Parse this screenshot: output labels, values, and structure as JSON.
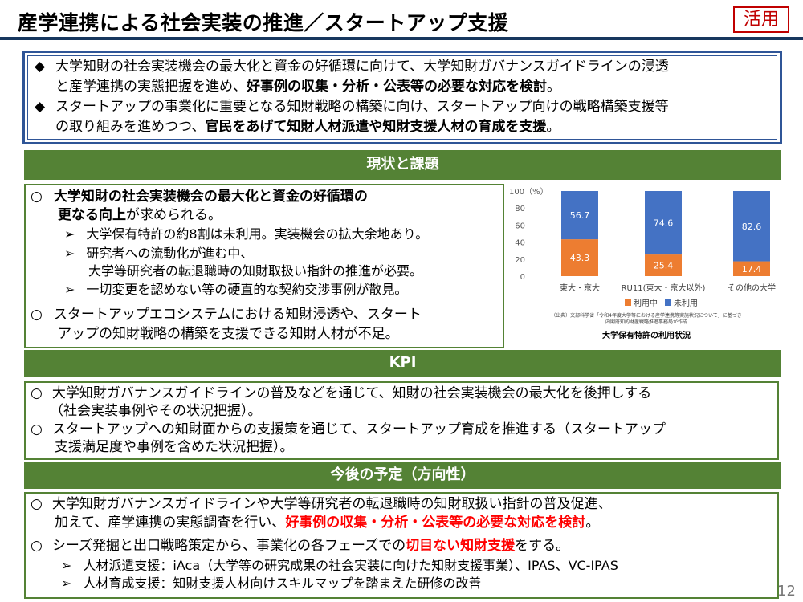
{
  "header": {
    "title": "産学連携による社会実装の推進／スタートアップ支援",
    "badge": "活用"
  },
  "summary": {
    "bullet_symbol": "◆",
    "items": [
      {
        "line1": "大学知財の社会実装機会の最大化と資金の好循環に向けて、大学知財ガバナンスガイドラインの浸透",
        "line2_pre": "と産学連携の実態把握を進め、",
        "line2_bold": "好事例の収集・分析・公表等の必要な対応を検討",
        "line2_post": "。"
      },
      {
        "line1": "スタートアップの事業化に重要となる知財戦略の構築に向け、スタートアップ向けの戦略構築支援等",
        "line2_pre": "の取り組みを進めつつ、",
        "line2_bold": "官民をあげて知財人材派遣や知財支援人材の育成を支援",
        "line2_post": "。"
      }
    ]
  },
  "current": {
    "heading": "現状と課題",
    "circle": "○",
    "arrow": "➢",
    "item1_line1": "大学知財の社会実装機会の最大化と資金の好循環の",
    "item1_line2_bold": "更なる向上",
    "item1_line2_rest": "が求められる。",
    "sub1": "大学保有特許の約8割は未利用。実装機会の拡大余地あり。",
    "sub2_line1": "研究者への流動化が進む中、",
    "sub2_line2": "大学等研究者の転退職時の知財取扱い指針の推進が必要。",
    "sub3": "一切変更を認めない等の硬直的な契約交渉事例が散見。",
    "item2_line1": "スタートアップエコシステムにおける知財浸透や、スタート",
    "item2_line2": "アップの知財戦略の構築を支援できる知財人材が不足。"
  },
  "chart_data": {
    "type": "bar",
    "stacked": true,
    "categories": [
      "東大・京大",
      "RU11(東大・京大以外)",
      "その他の大学"
    ],
    "series": [
      {
        "name": "利用中",
        "values": [
          43.3,
          25.4,
          17.4
        ],
        "color": "#ed7d31"
      },
      {
        "name": "未利用",
        "values": [
          56.7,
          74.6,
          82.6
        ],
        "color": "#4472c4"
      }
    ],
    "ylim": [
      0,
      100
    ],
    "yticks": [
      "0",
      "20",
      "40",
      "60",
      "80",
      "100（%）"
    ],
    "legend_position": "bottom",
    "source_line1": "（出典）文部科学省「令和4年度大学等における産学連携等実施状況について」に基づき",
    "source_line2": "内閣府知的財産戦略推進事務局が作成",
    "caption": "大学保有特許の利用状況"
  },
  "kpi": {
    "heading": "KPI",
    "line1": "大学知財ガバナンスガイドラインの普及などを通じて、知財の社会実装機会の最大化を後押しする",
    "line2": "（社会実装事例やその状況把握）。",
    "line3": "スタートアップへの知財面からの支援策を通じて、スタートアップ育成を推進する（スタートアップ",
    "line4": "支援満足度や事例を含めた状況把握）。"
  },
  "plan": {
    "heading": "今後の予定（方向性）",
    "line1": "大学知財ガバナンスガイドラインや大学等研究者の転退職時の知財取扱い指針の普及促進、",
    "line2_pre": "加えて、産学連携の実態調査を行い、",
    "line2_red": "好事例の収集・分析・公表等の必要な対応を検討",
    "line2_post": "。",
    "line3_pre": "シーズ発掘と出口戦略策定から、事業化の各フェーズでの",
    "line3_red": "切目ない知財支援",
    "line3_post": "をする。",
    "sub1": "人材派遣支援：iAca（大学等の研究成果の社会実装に向けた知財支援事業）、IPAS、VC-IPAS",
    "sub2": "人材育成支援：知財支援人材向けスキルマップを踏まえた研修の改善"
  },
  "footer": {
    "page_number": "12"
  }
}
